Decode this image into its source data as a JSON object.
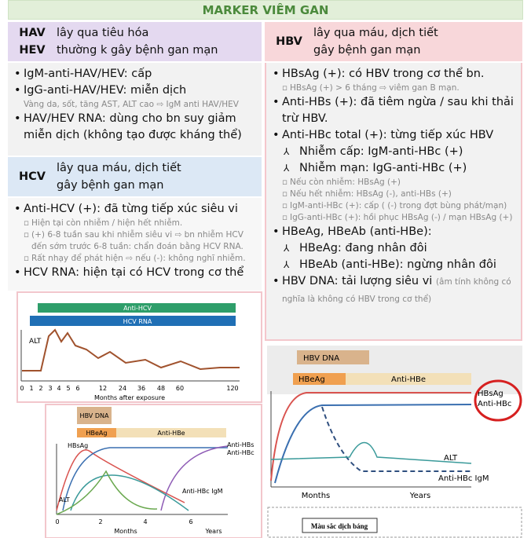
{
  "header": {
    "title": "MARKER VIÊM GAN"
  },
  "hav": {
    "codes": [
      "HAV",
      "HEV"
    ],
    "desc": [
      "lây qua tiêu hóa",
      "thường k gây bệnh gan mạn"
    ],
    "items": [
      {
        "text": "IgM-anti-HAV/HEV: cấp"
      },
      {
        "text": "IgG-anti-HAV/HEV: miễn dịch",
        "caption": "Vàng da, sốt, tăng AST, ALT cao ⇨ IgM anti HAV/HEV"
      },
      {
        "text": "HAV/HEV RNA: dùng cho bn suy giảm miễn dịch (không tạo được kháng thể)"
      }
    ]
  },
  "hcv": {
    "codes": [
      "HCV"
    ],
    "desc": [
      "lây qua máu, dịch tiết",
      "gây bệnh gan mạn"
    ],
    "items": [
      {
        "text": "Anti-HCV (+): đã từng tiếp xúc siêu vi",
        "notes": [
          "Hiện tại còn nhiễm / hiện hết nhiễm.",
          "(+) 6-8 tuần sau khi nhiễm siêu vi ⇨ bn nhiễm HCV đến sớm trước 6-8 tuần: chẩn đoán bằng HCV RNA.",
          "Rất nhạy để phát hiện ⇨ nếu (-): không nghĩ nhiễm."
        ]
      },
      {
        "text": "HCV RNA: hiện tại có HCV trong cơ thể"
      }
    ],
    "figure": {
      "bars": [
        "Anti-HCV",
        "HCV RNA"
      ],
      "curve_label": "ALT",
      "x_labels": [
        0,
        1,
        2,
        3,
        4,
        5,
        6,
        12,
        24,
        36,
        48,
        60,
        120
      ],
      "x_title": "Months after exposure"
    }
  },
  "hbv_small_figure": {
    "boxes": [
      "HBV DNA",
      "HBeAg",
      "Anti-HBe"
    ],
    "curve_labels": [
      "HBsAg",
      "Anti-HBs",
      "Anti-HBc",
      "Anti-HBc IgM",
      "ALT"
    ],
    "x_labels": [
      0,
      2,
      4,
      6
    ],
    "x_titles": [
      "Months",
      "Years"
    ]
  },
  "hbv": {
    "codes": [
      "HBV"
    ],
    "desc": [
      "lây qua máu, dịch tiết",
      "gây bệnh gan mạn"
    ],
    "items": [
      {
        "text": "HBsAg (+): có HBV trong cơ thể bn.",
        "notes": [
          "HBsAg (+) > 6 tháng ⇨ viêm gan B mạn."
        ]
      },
      {
        "text": "Anti-HBs (+): đã tiêm ngừa / sau khi thải trừ HBV."
      },
      {
        "text": "Anti-HBc total (+): từng tiếp xúc HBV",
        "subs": [
          "Nhiễm cấp: IgM-anti-HBc (+)",
          "Nhiễm mạn: IgG-anti-HBc (+)"
        ],
        "notes": [
          "Nếu còn nhiễm: HBsAg (+)",
          "Nếu hết nhiễm: HBsAg (-), anti-HBs (+)",
          "IgM-anti-HBc (+): cấp ( (-) trong đợt bùng phát/mạn)",
          "IgG-anti-HBc (+): hồi phục HBsAg (-) / mạn HBsAg (+)"
        ]
      },
      {
        "text": "HBeAg, HBeAb (anti-HBe):",
        "subs": [
          "HBeAg: đang nhân đôi",
          "HBeAb (anti-HBe): ngừng nhân đôi"
        ]
      },
      {
        "text": "HBV DNA: tải lượng siêu vi",
        "inline_note": "(âm tính không có nghĩa là không có HBV trong cơ thể)"
      }
    ],
    "figure": {
      "boxes": [
        "HBV DNA",
        "HBeAg",
        "Anti-HBe"
      ],
      "curve_labels": [
        "ALT",
        "Anti-HBc IgM",
        "HBsAg",
        "Anti-HBc"
      ],
      "x_titles": [
        "Months",
        "Years"
      ]
    }
  },
  "footer_doc": {
    "title": "Màu sắc dịch báng"
  }
}
